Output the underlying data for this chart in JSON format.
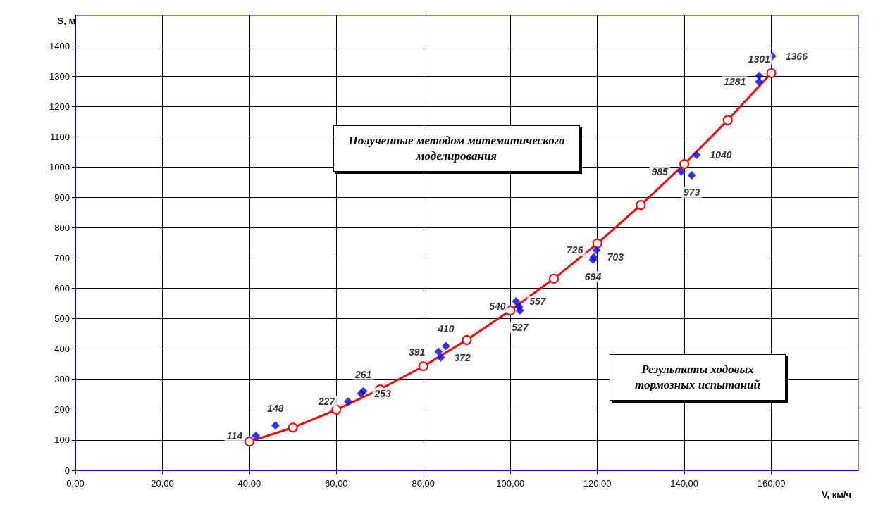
{
  "chart_data": {
    "type": "scatter",
    "xlabel": "V, км/ч",
    "ylabel": "S, м",
    "xlim": [
      0,
      180
    ],
    "xticks": [
      {
        "value": 0,
        "label": "0,00"
      },
      {
        "value": 20,
        "label": "20,00"
      },
      {
        "value": 40,
        "label": "40,00"
      },
      {
        "value": 60,
        "label": "60,00"
      },
      {
        "value": 80,
        "label": "80,00"
      },
      {
        "value": 100,
        "label": "100,00"
      },
      {
        "value": 120,
        "label": "120,00"
      },
      {
        "value": 140,
        "label": "140,00"
      },
      {
        "value": 160,
        "label": "160,00"
      }
    ],
    "ylim": [
      0,
      1500
    ],
    "yticks": [
      0,
      100,
      200,
      300,
      400,
      500,
      600,
      700,
      800,
      900,
      1000,
      1100,
      1200,
      1300,
      1400
    ],
    "grid": true,
    "legend": false,
    "series": [
      {
        "type": "line",
        "color": "#ff0000",
        "marker": "circle",
        "line_style": "solid",
        "x": [
          40,
          50,
          60,
          70,
          80,
          90,
          100,
          110,
          120,
          130,
          140,
          150,
          160
        ],
        "values": [
          95,
          141,
          200,
          267,
          343,
          430,
          527,
          632,
          748,
          875,
          1010,
          1155,
          1310
        ]
      },
      {
        "color": "#0000ff",
        "marker": "diamond",
        "x": [
          41.5,
          46,
          62.7,
          65.7,
          66.2,
          84,
          83.5,
          85.2,
          102.2,
          102,
          101.3,
          119,
          119.2,
          119.8,
          141.7,
          139.3,
          142.8,
          157.2,
          157.2,
          160.2
        ],
        "values": [
          114,
          148,
          227,
          253,
          261,
          372,
          391,
          410,
          527,
          540,
          557,
          694,
          703,
          726,
          973,
          985,
          1040,
          1281,
          1301,
          1366
        ],
        "value_labels": [
          "114",
          "148",
          "227",
          "253",
          "261",
          "372",
          "391",
          "410",
          "527",
          "540",
          "557",
          "694",
          "703",
          "726",
          "973",
          "985",
          "1040",
          "1281",
          "1301",
          "1366"
        ]
      }
    ],
    "annotations": [
      "Полученные методом математического моделирования",
      "Результаты ходовых тормозных испытаний"
    ]
  }
}
